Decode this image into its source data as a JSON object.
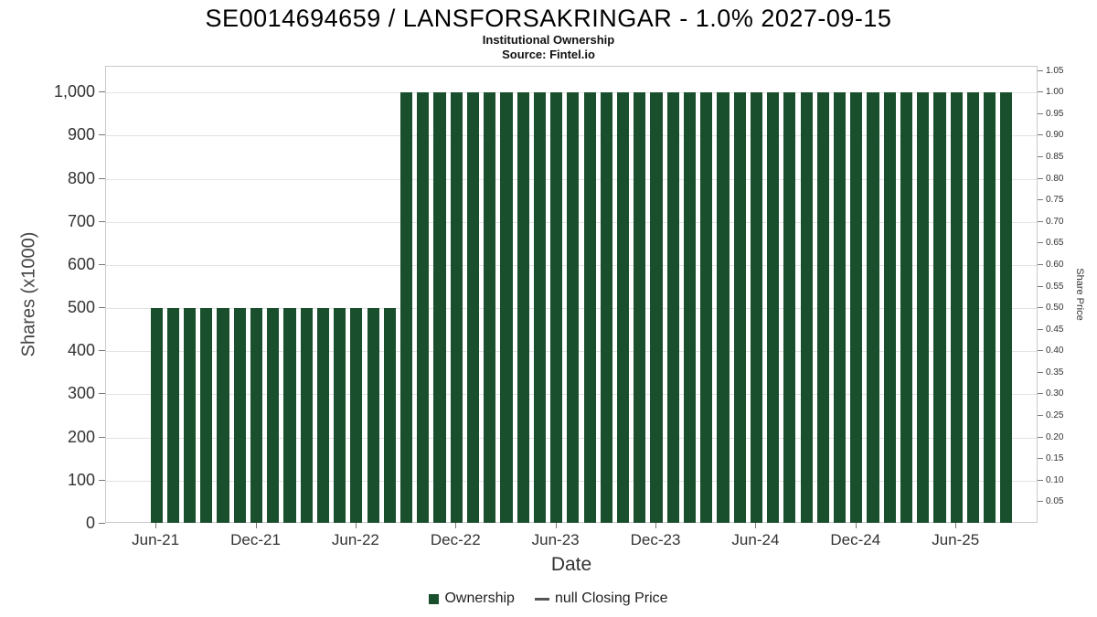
{
  "chart_data": {
    "type": "bar",
    "title": "SE0014694659 / LANSFORSAKRINGAR - 1.0% 2027-09-15",
    "subtitle": "Institutional Ownership",
    "source": "Source: Fintel.io",
    "xlabel": "Date",
    "ylabel_left": "Shares (x1000)",
    "ylabel_right": "Share Price",
    "ylim_left": [
      0,
      1000
    ],
    "ylim_right": [
      0,
      1.05
    ],
    "grid": true,
    "legend_position": "bottom",
    "bar_color": "#1a4f2d",
    "yticks_left": [
      0,
      100,
      200,
      300,
      400,
      500,
      600,
      700,
      800,
      900,
      1000
    ],
    "yticks_left_labels": [
      "0",
      "100",
      "200",
      "300",
      "400",
      "500",
      "600",
      "700",
      "800",
      "900",
      "1,000"
    ],
    "yticks_right": [
      0.05,
      0.1,
      0.15,
      0.2,
      0.25,
      0.3,
      0.35,
      0.4,
      0.45,
      0.5,
      0.55,
      0.6,
      0.65,
      0.7,
      0.75,
      0.8,
      0.85,
      0.9,
      0.95,
      1.0,
      1.05
    ],
    "yticks_right_labels": [
      "0.05",
      "0.10",
      "0.15",
      "0.20",
      "0.25",
      "0.30",
      "0.35",
      "0.40",
      "0.45",
      "0.50",
      "0.55",
      "0.60",
      "0.65",
      "0.70",
      "0.75",
      "0.80",
      "0.85",
      "0.90",
      "0.95",
      "1.00",
      "1.05"
    ],
    "xticks": [
      "Jun-21",
      "Dec-21",
      "Jun-22",
      "Dec-22",
      "Jun-23",
      "Dec-23",
      "Jun-24",
      "Dec-24",
      "Jun-25"
    ],
    "xtick_indices": [
      0,
      6,
      12,
      18,
      24,
      30,
      36,
      42,
      48
    ],
    "categories": [
      "Jun-21",
      "Jul-21",
      "Aug-21",
      "Sep-21",
      "Oct-21",
      "Nov-21",
      "Dec-21",
      "Jan-22",
      "Feb-22",
      "Mar-22",
      "Apr-22",
      "May-22",
      "Jun-22",
      "Jul-22",
      "Aug-22",
      "Sep-22",
      "Oct-22",
      "Nov-22",
      "Dec-22",
      "Jan-23",
      "Feb-23",
      "Mar-23",
      "Apr-23",
      "May-23",
      "Jun-23",
      "Jul-23",
      "Aug-23",
      "Sep-23",
      "Oct-23",
      "Nov-23",
      "Dec-23",
      "Jan-24",
      "Feb-24",
      "Mar-24",
      "Apr-24",
      "May-24",
      "Jun-24",
      "Jul-24",
      "Aug-24",
      "Sep-24",
      "Oct-24",
      "Nov-24",
      "Dec-24",
      "Jan-25",
      "Feb-25",
      "Mar-25",
      "Apr-25",
      "May-25",
      "Jun-25",
      "Jul-25",
      "Aug-25",
      "Sep-25"
    ],
    "series": [
      {
        "name": "Ownership",
        "type": "bar",
        "values": [
          500,
          500,
          500,
          500,
          500,
          500,
          500,
          500,
          500,
          500,
          500,
          500,
          500,
          500,
          500,
          1000,
          1000,
          1000,
          1000,
          1000,
          1000,
          1000,
          1000,
          1000,
          1000,
          1000,
          1000,
          1000,
          1000,
          1000,
          1000,
          1000,
          1000,
          1000,
          1000,
          1000,
          1000,
          1000,
          1000,
          1000,
          1000,
          1000,
          1000,
          1000,
          1000,
          1000,
          1000,
          1000,
          1000,
          1000,
          1000,
          1000
        ]
      },
      {
        "name": "null Closing Price",
        "type": "line",
        "values": []
      }
    ]
  },
  "legend": {
    "items": [
      {
        "label": "Ownership",
        "marker": "square",
        "color": "#1a4f2d"
      },
      {
        "label": "null Closing Price",
        "marker": "dash",
        "color": "#555555"
      }
    ]
  }
}
